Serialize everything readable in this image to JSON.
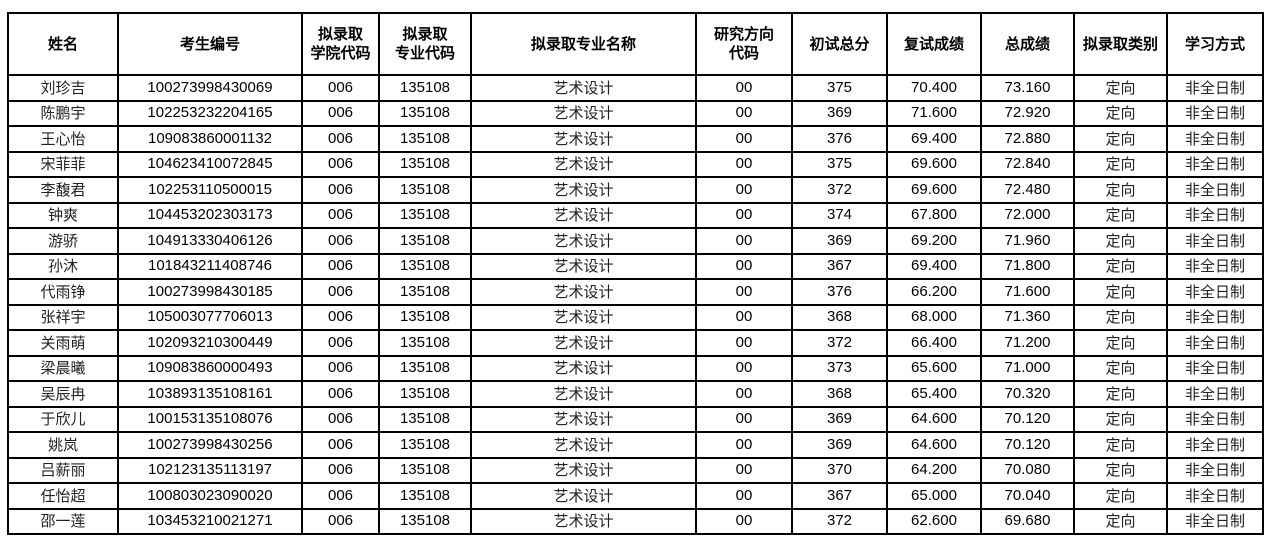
{
  "headers": [
    "姓名",
    "考生编号",
    "拟录取\n学院代码",
    "拟录取\n专业代码",
    "拟录取专业名称",
    "研究方向\n代码",
    "初试总分",
    "复试成绩",
    "总成绩",
    "拟录取类别",
    "学习方式"
  ],
  "rows": [
    [
      "刘珍吉",
      "100273998430069",
      "006",
      "135108",
      "艺术设计",
      "00",
      "375",
      "70.400",
      "73.160",
      "定向",
      "非全日制"
    ],
    [
      "陈鹏宇",
      "102253232204165",
      "006",
      "135108",
      "艺术设计",
      "00",
      "369",
      "71.600",
      "72.920",
      "定向",
      "非全日制"
    ],
    [
      "王心怡",
      "109083860001132",
      "006",
      "135108",
      "艺术设计",
      "00",
      "376",
      "69.400",
      "72.880",
      "定向",
      "非全日制"
    ],
    [
      "宋菲菲",
      "104623410072845",
      "006",
      "135108",
      "艺术设计",
      "00",
      "375",
      "69.600",
      "72.840",
      "定向",
      "非全日制"
    ],
    [
      "李馥君",
      "102253110500015",
      "006",
      "135108",
      "艺术设计",
      "00",
      "372",
      "69.600",
      "72.480",
      "定向",
      "非全日制"
    ],
    [
      "钟爽",
      "104453202303173",
      "006",
      "135108",
      "艺术设计",
      "00",
      "374",
      "67.800",
      "72.000",
      "定向",
      "非全日制"
    ],
    [
      "游骄",
      "104913330406126",
      "006",
      "135108",
      "艺术设计",
      "00",
      "369",
      "69.200",
      "71.960",
      "定向",
      "非全日制"
    ],
    [
      "孙沐",
      "101843211408746",
      "006",
      "135108",
      "艺术设计",
      "00",
      "367",
      "69.400",
      "71.800",
      "定向",
      "非全日制"
    ],
    [
      "代雨铮",
      "100273998430185",
      "006",
      "135108",
      "艺术设计",
      "00",
      "376",
      "66.200",
      "71.600",
      "定向",
      "非全日制"
    ],
    [
      "张祥宇",
      "105003077706013",
      "006",
      "135108",
      "艺术设计",
      "00",
      "368",
      "68.000",
      "71.360",
      "定向",
      "非全日制"
    ],
    [
      "关雨萌",
      "102093210300449",
      "006",
      "135108",
      "艺术设计",
      "00",
      "372",
      "66.400",
      "71.200",
      "定向",
      "非全日制"
    ],
    [
      "梁晨曦",
      "109083860000493",
      "006",
      "135108",
      "艺术设计",
      "00",
      "373",
      "65.600",
      "71.000",
      "定向",
      "非全日制"
    ],
    [
      "吴辰冉",
      "103893135108161",
      "006",
      "135108",
      "艺术设计",
      "00",
      "368",
      "65.400",
      "70.320",
      "定向",
      "非全日制"
    ],
    [
      "于欣儿",
      "100153135108076",
      "006",
      "135108",
      "艺术设计",
      "00",
      "369",
      "64.600",
      "70.120",
      "定向",
      "非全日制"
    ],
    [
      "姚岚",
      "100273998430256",
      "006",
      "135108",
      "艺术设计",
      "00",
      "369",
      "64.600",
      "70.120",
      "定向",
      "非全日制"
    ],
    [
      "吕薪丽",
      "102123135113197",
      "006",
      "135108",
      "艺术设计",
      "00",
      "370",
      "64.200",
      "70.080",
      "定向",
      "非全日制"
    ],
    [
      "任怡超",
      "100803023090020",
      "006",
      "135108",
      "艺术设计",
      "00",
      "367",
      "65.000",
      "70.040",
      "定向",
      "非全日制"
    ],
    [
      "邵一莲",
      "103453210021271",
      "006",
      "135108",
      "艺术设计",
      "00",
      "372",
      "62.600",
      "69.680",
      "定向",
      "非全日制"
    ]
  ]
}
